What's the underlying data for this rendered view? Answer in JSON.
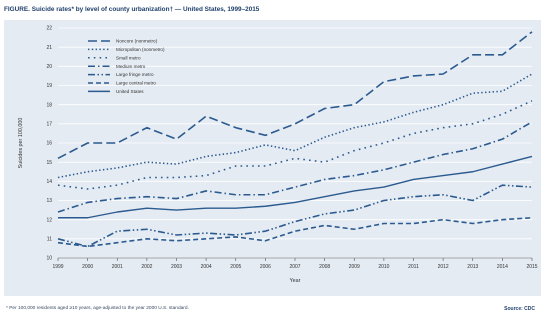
{
  "figure": {
    "title": "FIGURE. Suicide rates* by level of county urbanization† — United States, 1999–2015",
    "footnote": "* Per 100,000 residents aged ≥10 years, age-adjusted to the year 2000 U.S. standard.",
    "source": "Source: CDC"
  },
  "colors": {
    "series": "#2b5a8f",
    "panel": "#e4ebf3",
    "grid": "#ffffff",
    "title": "#1f3f6b"
  },
  "chart_data": {
    "type": "line",
    "title": "",
    "xlabel": "Year",
    "ylabel": "Suicides per 100,000",
    "xlim": [
      1999,
      2015
    ],
    "ylim": [
      10,
      22
    ],
    "grid": true,
    "legend_position": "top-left",
    "x_ticks": [
      "1999",
      "2000",
      "2001",
      "2002",
      "2003",
      "2004",
      "2005",
      "2006",
      "2007",
      "2008",
      "2009",
      "2010",
      "2011",
      "2012",
      "2013",
      "2014",
      "2015"
    ],
    "y_ticks": [
      "10",
      "11",
      "12",
      "13",
      "14",
      "15",
      "16",
      "17",
      "18",
      "19",
      "20",
      "21",
      "22"
    ],
    "x": [
      1999,
      2000,
      2001,
      2002,
      2003,
      2004,
      2005,
      2006,
      2007,
      2008,
      2009,
      2010,
      2011,
      2012,
      2013,
      2014,
      2015
    ],
    "series": [
      {
        "name": "Noncore (nonmetro)",
        "dash": "long-dash",
        "values": [
          15.2,
          16.0,
          16.0,
          16.8,
          16.2,
          17.4,
          16.8,
          16.4,
          17.0,
          17.8,
          18.0,
          19.2,
          19.5,
          19.6,
          20.6,
          20.6,
          21.8
        ]
      },
      {
        "name": "Micropolitan (nonmetro)",
        "dash": "dot",
        "values": [
          14.2,
          14.5,
          14.7,
          15.0,
          14.9,
          15.3,
          15.5,
          15.9,
          15.6,
          16.3,
          16.8,
          17.1,
          17.6,
          18.0,
          18.6,
          18.7,
          19.6
        ]
      },
      {
        "name": "Small metro",
        "dash": "dot-sparse",
        "values": [
          13.8,
          13.6,
          13.8,
          14.2,
          14.2,
          14.3,
          14.8,
          14.8,
          15.2,
          15.0,
          15.6,
          16.0,
          16.5,
          16.8,
          17.0,
          17.5,
          18.2
        ]
      },
      {
        "name": "Medium metro",
        "dash": "dash-dot",
        "values": [
          12.4,
          12.9,
          13.1,
          13.2,
          13.1,
          13.5,
          13.3,
          13.3,
          13.7,
          14.1,
          14.3,
          14.6,
          15.0,
          15.4,
          15.7,
          16.2,
          17.1
        ]
      },
      {
        "name": "Large fringe metro",
        "dash": "dash-dot-dot",
        "values": [
          11.0,
          10.6,
          11.4,
          11.5,
          11.2,
          11.3,
          11.2,
          11.4,
          11.9,
          12.3,
          12.5,
          13.0,
          13.2,
          13.3,
          13.0,
          13.8,
          13.7
        ]
      },
      {
        "name": "Large central metro",
        "dash": "medium-dash",
        "values": [
          10.8,
          10.6,
          10.8,
          11.0,
          10.9,
          11.0,
          11.1,
          10.9,
          11.4,
          11.7,
          11.5,
          11.8,
          11.8,
          12.0,
          11.8,
          12.0,
          12.1
        ]
      },
      {
        "name": "United States",
        "dash": "solid",
        "values": [
          12.1,
          12.1,
          12.4,
          12.6,
          12.5,
          12.6,
          12.6,
          12.7,
          12.9,
          13.2,
          13.5,
          13.7,
          14.1,
          14.3,
          14.5,
          14.9,
          15.3
        ]
      }
    ]
  }
}
